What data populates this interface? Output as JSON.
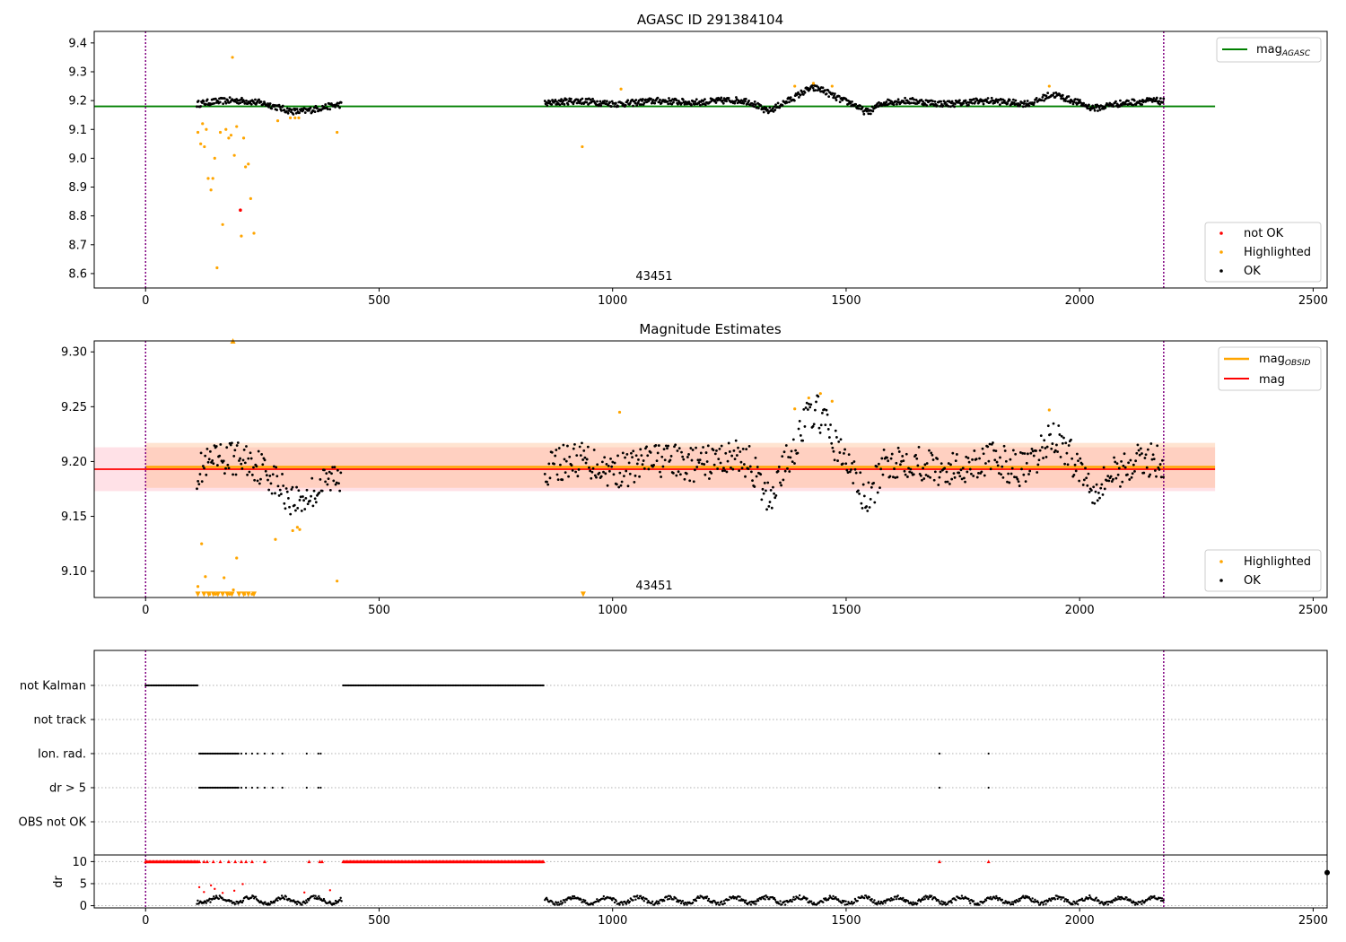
{
  "chart_data": [
    {
      "type": "scatter",
      "title": "AGASC ID 291384104",
      "annotation": "43451",
      "xlim": [
        -110,
        2530
      ],
      "ylim": [
        8.55,
        9.44
      ],
      "xticks": [
        0,
        500,
        1000,
        1500,
        2000,
        2500
      ],
      "yticks": [
        8.6,
        8.7,
        8.8,
        8.9,
        9.0,
        9.1,
        9.2,
        9.3,
        9.4
      ],
      "ytick_labels": [
        "8.6",
        "8.7",
        "8.8",
        "8.9",
        "9.0",
        "9.1",
        "9.2",
        "9.3",
        "9.4"
      ],
      "vlines": [
        0,
        2180
      ],
      "hline": {
        "name_main": "mag",
        "name_sub": "AGASC",
        "value": 9.18,
        "x_range": [
          -110,
          2290
        ],
        "color": "#008000"
      },
      "legend_upper": "top-right",
      "legend_lower": "bottom-right",
      "series": [
        {
          "name": "not OK",
          "color": "#ff0000",
          "points": [
            [
              203,
              8.82
            ]
          ]
        },
        {
          "name": "Highlighted",
          "color": "#ffa500",
          "points": [
            [
              112,
              9.09
            ],
            [
              118,
              9.05
            ],
            [
              122,
              9.12
            ],
            [
              126,
              9.04
            ],
            [
              130,
              9.1
            ],
            [
              134,
              8.93
            ],
            [
              140,
              8.89
            ],
            [
              144,
              8.93
            ],
            [
              148,
              9.0
            ],
            [
              153,
              8.62
            ],
            [
              160,
              9.09
            ],
            [
              165,
              8.77
            ],
            [
              172,
              9.1
            ],
            [
              178,
              9.07
            ],
            [
              183,
              9.08
            ],
            [
              186,
              9.35
            ],
            [
              190,
              9.01
            ],
            [
              195,
              9.11
            ],
            [
              205,
              8.73
            ],
            [
              210,
              9.07
            ],
            [
              214,
              8.97
            ],
            [
              220,
              8.98
            ],
            [
              225,
              8.86
            ],
            [
              232,
              8.74
            ],
            [
              283,
              9.13
            ],
            [
              310,
              9.14
            ],
            [
              320,
              9.14
            ],
            [
              328,
              9.14
            ],
            [
              410,
              9.09
            ],
            [
              935,
              9.04
            ],
            [
              1018,
              9.24
            ],
            [
              1390,
              9.25
            ],
            [
              1430,
              9.26
            ],
            [
              1470,
              9.25
            ],
            [
              1935,
              9.25
            ]
          ]
        },
        {
          "name": "OK",
          "color": "#000000",
          "segments": [
            [
              110,
              420
            ],
            [
              855,
              2180
            ]
          ]
        }
      ]
    },
    {
      "type": "scatter",
      "title": "Magnitude Estimates",
      "annotation": "43451",
      "xlim": [
        -110,
        2530
      ],
      "ylim": [
        9.076,
        9.31
      ],
      "xticks": [
        0,
        500,
        1000,
        1500,
        2000,
        2500
      ],
      "yticks": [
        9.1,
        9.15,
        9.2,
        9.25,
        9.3
      ],
      "ytick_labels": [
        "9.10",
        "9.15",
        "9.20",
        "9.25",
        "9.30"
      ],
      "vlines": [
        0,
        2180
      ],
      "lines": [
        {
          "name_main": "mag",
          "name_sub": "OBSID",
          "value": 9.195,
          "band": [
            9.176,
            9.217
          ],
          "x_range": [
            0,
            2290
          ],
          "color": "#ffa500"
        },
        {
          "name_main": "mag",
          "name_sub": "",
          "value": 9.193,
          "band": [
            9.173,
            9.213
          ],
          "x_range": [
            -110,
            2290
          ],
          "color": "#ff0000"
        }
      ],
      "legend_upper": "top-right",
      "legend_lower": "bottom-right",
      "series": [
        {
          "name": "Highlighted",
          "color": "#ffa500",
          "points": [
            [
              112,
              9.086
            ],
            [
              120,
              9.125
            ],
            [
              128,
              9.095
            ],
            [
              137,
              9.079
            ],
            [
              150,
              9.079
            ],
            [
              168,
              9.094
            ],
            [
              180,
              9.079
            ],
            [
              188,
              9.083
            ],
            [
              195,
              9.112
            ],
            [
              212,
              9.079
            ],
            [
              228,
              9.079
            ],
            [
              278,
              9.129
            ],
            [
              315,
              9.137
            ],
            [
              325,
              9.14
            ],
            [
              330,
              9.138
            ],
            [
              410,
              9.091
            ],
            [
              1015,
              9.245
            ],
            [
              1390,
              9.248
            ],
            [
              1420,
              9.258
            ],
            [
              1445,
              9.262
            ],
            [
              1470,
              9.255
            ],
            [
              1935,
              9.247
            ]
          ],
          "markers_below": [
            [
              112,
              9.079
            ],
            [
              125,
              9.079
            ],
            [
              135,
              9.079
            ],
            [
              145,
              9.079
            ],
            [
              155,
              9.079
            ],
            [
              165,
              9.079
            ],
            [
              175,
              9.079
            ],
            [
              185,
              9.079
            ],
            [
              200,
              9.079
            ],
            [
              210,
              9.079
            ],
            [
              220,
              9.079
            ],
            [
              232,
              9.079
            ],
            [
              937,
              9.079
            ]
          ],
          "markers_above": [
            [
              187,
              9.31
            ]
          ]
        },
        {
          "name": "OK",
          "color": "#000000",
          "segments": [
            [
              110,
              420
            ],
            [
              855,
              2180
            ]
          ]
        }
      ]
    },
    {
      "type": "scatter",
      "title": "",
      "xlim": [
        -110,
        2530
      ],
      "categories": [
        "not Kalman",
        "not track",
        "Ion. rad.",
        "dr > 5",
        "OBS not OK"
      ],
      "flag_ranges": {
        "not Kalman": [
          [
            0,
            112
          ],
          [
            423,
            853
          ]
        ],
        "not track": [],
        "Ion. rad.": [
          [
            115,
            200
          ]
        ],
        "dr > 5": [
          [
            115,
            200
          ]
        ]
      },
      "flag_points": {
        "Ion. rad.": [
          205,
          215,
          228,
          240,
          255,
          272,
          293,
          345,
          370,
          375,
          1700,
          1805
        ],
        "dr > 5": [
          205,
          215,
          228,
          240,
          255,
          272,
          293,
          345,
          370,
          375,
          1700,
          1805
        ]
      }
    },
    {
      "type": "scatter",
      "title": "",
      "ylabel": "dr",
      "xlim": [
        -110,
        2530
      ],
      "ylim": [
        -0.5,
        11.5
      ],
      "xticks": [
        0,
        500,
        1000,
        1500,
        2000,
        2500
      ],
      "yticks": [
        0,
        5,
        10
      ],
      "ytick_labels": [
        "0",
        "5",
        "10"
      ],
      "vlines": [
        0,
        2180
      ],
      "capped_value": 10,
      "capped_ranges": [
        [
          0,
          112
        ],
        [
          423,
          853
        ]
      ],
      "capped_points": [
        115,
        125,
        132,
        145,
        160,
        178,
        192,
        205,
        215,
        228,
        255,
        350,
        373,
        378,
        1700,
        1805
      ],
      "scatter_points": [
        [
          115,
          4.2
        ],
        [
          125,
          3.1
        ],
        [
          140,
          4.6
        ],
        [
          148,
          3.8
        ],
        [
          165,
          2.9
        ],
        [
          190,
          3.4
        ],
        [
          208,
          4.9
        ],
        [
          340,
          3.0
        ],
        [
          395,
          3.5
        ]
      ],
      "dr_segments": [
        [
          110,
          420
        ],
        [
          855,
          2180
        ]
      ],
      "side_marker": [
        2530,
        7.5
      ]
    }
  ]
}
